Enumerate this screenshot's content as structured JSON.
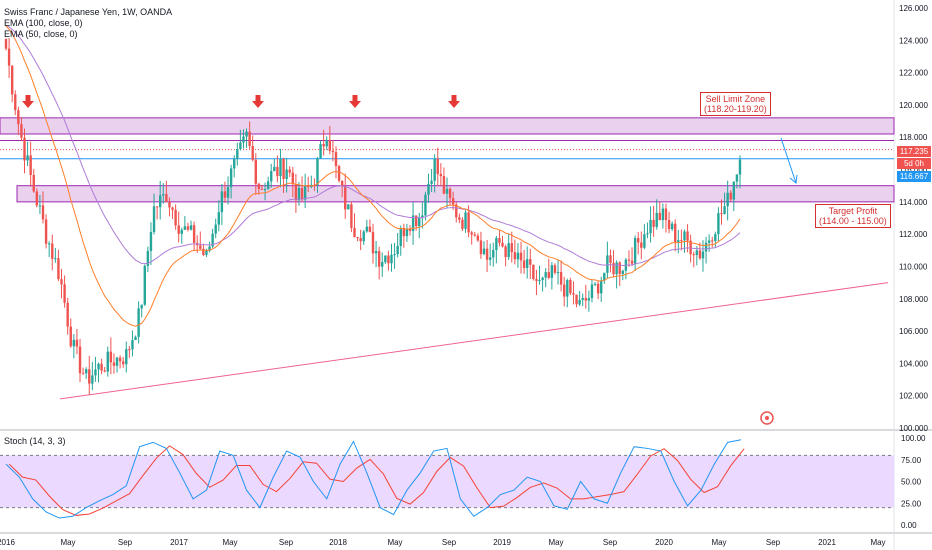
{
  "header": {
    "title": "Swiss Franc / Japanese Yen, 1W, OANDA",
    "indicators": [
      "EMA (100, close, 0)",
      "EMA (50, close, 0)"
    ]
  },
  "annotations": {
    "sell_zone_title": "Sell Limit Zone",
    "sell_zone_range": "(118.20-119.20)",
    "target_title": "Target Profit",
    "target_range": "(114.00 - 115.00)"
  },
  "price_tags": {
    "last": "117.235",
    "countdown": "5d 0h",
    "ema": "116.667"
  },
  "stoch": {
    "label": "Stoch (14, 3, 3)",
    "ticks": [
      "100.00",
      "75.00",
      "50.00",
      "25.00",
      "0.00"
    ]
  },
  "colors": {
    "zone_fill": "#e1bee7",
    "zone_border": "#9c27b0",
    "bull": "#26a69a",
    "bear": "#ef5350",
    "ema50": "#ff7f2a",
    "ema100": "#b07cd8",
    "trendline": "#f06292",
    "stoch_k": "#2196f3",
    "stoch_d": "#f44336",
    "stoch_band": "#e6ccff",
    "last_tag": "#ef5350",
    "ema_tag": "#2196f3"
  },
  "chart_data": {
    "type": "candlestick",
    "title": "Swiss Franc / Japanese Yen, 1W, OANDA",
    "price_axis": {
      "ticks": [
        "126.000",
        "124.000",
        "122.000",
        "120.000",
        "118.000",
        "116.000",
        "114.000",
        "112.000",
        "110.000",
        "108.000",
        "106.000",
        "104.000",
        "102.000",
        "100.000"
      ],
      "range": [
        100,
        126
      ]
    },
    "time_axis": {
      "labels": [
        "2016",
        "May",
        "Sep",
        "2017",
        "May",
        "Sep",
        "2018",
        "May",
        "Sep",
        "2019",
        "May",
        "Sep",
        "2020",
        "May",
        "Sep",
        "2021",
        "May"
      ]
    },
    "zones": [
      {
        "name": "Sell Limit Zone",
        "from": 118.2,
        "to": 119.2
      },
      {
        "name": "Target Profit",
        "from": 114.0,
        "to": 115.0
      }
    ],
    "horizontal_lines": [
      117.8,
      117.235,
      116.667
    ],
    "trendline": {
      "from": {
        "x": "2016-04",
        "y": 101.8
      },
      "to": {
        "x": "2021-06",
        "y": 109.0
      }
    },
    "close_path": [
      {
        "x": "2016-01",
        "y": 123.5
      },
      {
        "x": "2016-02",
        "y": 118.5
      },
      {
        "x": "2016-03",
        "y": 115.0
      },
      {
        "x": "2016-04",
        "y": 112.0
      },
      {
        "x": "2016-05",
        "y": 109.5
      },
      {
        "x": "2016-06",
        "y": 105.0
      },
      {
        "x": "2016-07",
        "y": 103.0
      },
      {
        "x": "2016-08",
        "y": 103.8
      },
      {
        "x": "2016-09",
        "y": 104.2
      },
      {
        "x": "2016-10",
        "y": 104.5
      },
      {
        "x": "2016-11",
        "y": 107.0
      },
      {
        "x": "2016-12",
        "y": 113.5
      },
      {
        "x": "2017-01",
        "y": 114.5
      },
      {
        "x": "2017-02",
        "y": 112.5
      },
      {
        "x": "2017-03",
        "y": 111.8
      },
      {
        "x": "2017-04",
        "y": 110.5
      },
      {
        "x": "2017-05",
        "y": 114.0
      },
      {
        "x": "2017-06",
        "y": 116.0
      },
      {
        "x": "2017-07",
        "y": 118.0
      },
      {
        "x": "2017-08",
        "y": 114.8
      },
      {
        "x": "2017-09",
        "y": 115.8
      },
      {
        "x": "2017-10",
        "y": 116.2
      },
      {
        "x": "2017-11",
        "y": 114.0
      },
      {
        "x": "2017-12",
        "y": 115.3
      },
      {
        "x": "2018-01",
        "y": 118.5
      },
      {
        "x": "2018-02",
        "y": 114.8
      },
      {
        "x": "2018-03",
        "y": 112.5
      },
      {
        "x": "2018-04",
        "y": 112.0
      },
      {
        "x": "2018-05",
        "y": 110.5
      },
      {
        "x": "2018-06",
        "y": 111.0
      },
      {
        "x": "2018-07",
        "y": 112.8
      },
      {
        "x": "2018-08",
        "y": 113.2
      },
      {
        "x": "2018-09",
        "y": 116.5
      },
      {
        "x": "2018-10",
        "y": 114.2
      },
      {
        "x": "2018-11",
        "y": 113.0
      },
      {
        "x": "2018-12",
        "y": 112.5
      },
      {
        "x": "2019-01",
        "y": 110.5
      },
      {
        "x": "2019-02",
        "y": 111.5
      },
      {
        "x": "2019-03",
        "y": 110.5
      },
      {
        "x": "2019-04",
        "y": 109.8
      },
      {
        "x": "2019-05",
        "y": 108.8
      },
      {
        "x": "2019-06",
        "y": 109.5
      },
      {
        "x": "2019-07",
        "y": 108.5
      },
      {
        "x": "2019-08",
        "y": 107.5
      },
      {
        "x": "2019-09",
        "y": 108.5
      },
      {
        "x": "2019-10",
        "y": 110.0
      },
      {
        "x": "2019-11",
        "y": 110.0
      },
      {
        "x": "2019-12",
        "y": 111.0
      },
      {
        "x": "2020-01",
        "y": 112.5
      },
      {
        "x": "2020-02",
        "y": 113.2
      },
      {
        "x": "2020-03",
        "y": 112.0
      },
      {
        "x": "2020-04",
        "y": 111.5
      },
      {
        "x": "2020-05",
        "y": 110.8
      },
      {
        "x": "2020-06",
        "y": 112.5
      },
      {
        "x": "2020-07",
        "y": 114.0
      },
      {
        "x": "2020-08",
        "y": 117.0
      }
    ],
    "stochastic": {
      "name": "Stoch (14, 3, 3)",
      "range": [
        0,
        100
      ],
      "bands": [
        20,
        80
      ],
      "k_path": [
        70,
        55,
        30,
        15,
        8,
        10,
        20,
        28,
        35,
        45,
        90,
        95,
        88,
        60,
        30,
        40,
        85,
        80,
        40,
        20,
        55,
        85,
        78,
        50,
        30,
        70,
        96,
        60,
        20,
        12,
        40,
        60,
        85,
        88,
        30,
        10,
        20,
        35,
        40,
        55,
        50,
        22,
        18,
        50,
        30,
        25,
        60,
        90,
        88,
        85,
        50,
        22,
        40,
        70,
        95,
        98
      ]
    }
  }
}
